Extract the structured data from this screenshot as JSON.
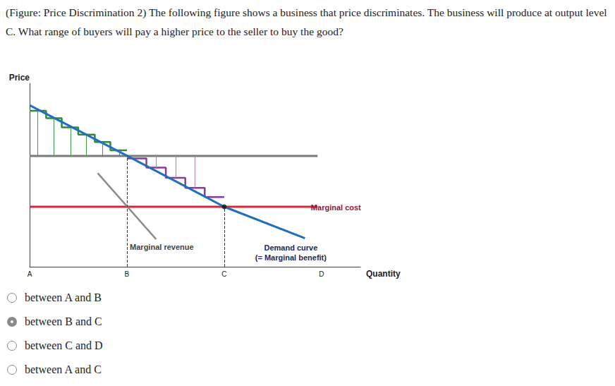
{
  "question": "(Figure: Price Discrimination 2) The following figure shows a business that price discriminates. The business will produce at output level C. What range of buyers will pay a higher price to the seller to buy the good?",
  "options": [
    "between A and B",
    "between B and C",
    "between C and D",
    "between A and C"
  ],
  "selected": "between B and C",
  "chart_data": {
    "type": "line",
    "x_label": "Quantity",
    "y_label": "Price",
    "xlim": [
      0,
      3.4
    ],
    "ylim": [
      0,
      10
    ],
    "xticks": [
      {
        "value": 0,
        "label": "A"
      },
      {
        "value": 1,
        "label": "B"
      },
      {
        "value": 2,
        "label": "C"
      },
      {
        "value": 3,
        "label": "D"
      }
    ],
    "tick_labels": "x",
    "grid": false,
    "series": [
      {
        "type": "line",
        "color": "#7a7a7a",
        "x": [
          0,
          2.96
        ],
        "values": [
          6.04,
          6.04
        ]
      },
      {
        "type": "line",
        "name": "Marginal cost",
        "color": "#d9263a",
        "x": [
          0,
          2.96
        ],
        "values": [
          3.27,
          3.27
        ]
      },
      {
        "type": "drops",
        "color": "#333333",
        "line_style": "dashed",
        "x": [
          1,
          2
        ],
        "values": [
          6.04,
          3.27
        ],
        "base": 0
      },
      {
        "type": "drops",
        "color": "#3a9a48",
        "x": [
          0.08,
          0.25,
          0.42,
          0.58,
          0.75,
          0.92
        ],
        "values": [
          8.5,
          8.1,
          7.6,
          7.2,
          6.8,
          6.35
        ],
        "base": 6.04
      },
      {
        "type": "drops",
        "color": "#b57cc4",
        "x": [
          1.3,
          1.5,
          1.7
        ],
        "values": [
          5.4,
          4.85,
          4.3
        ],
        "base": 6.04
      },
      {
        "type": "line",
        "color": "#2e8b3a",
        "x": [
          0,
          0.17,
          0.17,
          0.33,
          0.33,
          0.5,
          0.5,
          0.67,
          0.67,
          0.83,
          0.83,
          1
        ],
        "values": [
          8.5,
          8.5,
          8.1,
          8.1,
          7.6,
          7.6,
          7.2,
          7.2,
          6.8,
          6.8,
          6.35,
          6.35
        ]
      },
      {
        "type": "line",
        "color": "#8b3a9a",
        "x": [
          1,
          1.2,
          1.2,
          1.4,
          1.4,
          1.6,
          1.6,
          1.8,
          1.8,
          2
        ],
        "values": [
          5.9,
          5.9,
          5.4,
          5.4,
          4.85,
          4.85,
          4.3,
          4.3,
          3.8,
          3.8
        ]
      },
      {
        "type": "line",
        "name": "Marginal revenue",
        "color": "#8a8a8a",
        "x": [
          0.7,
          1.3
        ],
        "values": [
          5.1,
          1.5
        ]
      },
      {
        "type": "line",
        "name": "Demand curve\n(= Marginal benefit)",
        "color": "#1f6fbf",
        "x": [
          0,
          1,
          2,
          2.83
        ],
        "values": [
          8.8,
          6.05,
          3.27,
          1.55
        ]
      },
      {
        "type": "scatter",
        "marker": "circle",
        "color": "#111111",
        "x": [
          2
        ],
        "values": [
          3.27
        ]
      }
    ]
  }
}
